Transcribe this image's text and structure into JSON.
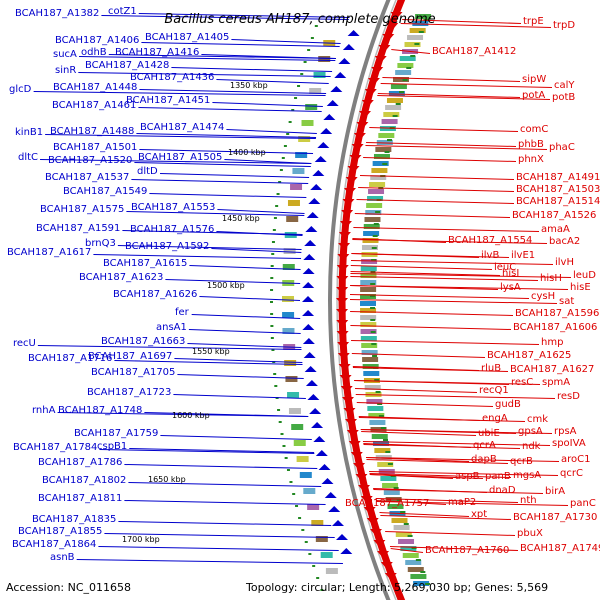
{
  "title": "Bacillus cereus AH187, complete genome",
  "accession_text": "Accession: NC_011658",
  "summary_text": "Topology: circular; Length: 5,269,030 bp; Genes: 5,569",
  "colors": {
    "left_strand": "#0000cc",
    "right_strand": "#dd0000",
    "backbone": "#808080",
    "tick_green": "#228822"
  },
  "kbp_ticks": [
    "1350 kbp",
    "1400 kbp",
    "1450 kbp",
    "1500 kbp",
    "1550 kbp",
    "1600 kbp",
    "1650 kbp",
    "1700 kbp"
  ],
  "left_labels": [
    "BCAH187_A1382",
    "cotZ1",
    "BCAH187_A1406",
    "BCAH187_A1405",
    "sucA",
    "odhB",
    "BCAH187_A1416",
    "sinR",
    "BCAH187_A1428",
    "BCAH187_A1436",
    "glcD",
    "BCAH187_A1448",
    "BCAH187_A1461",
    "BCAH187_A1451",
    "BCAH187_A1474",
    "kinB1",
    "BCAH187_A1488",
    "BCAH187_A1501",
    "dltC",
    "BCAH187_A1520",
    "BCAH187_A1505",
    "dltD",
    "BCAH187_A1537",
    "BCAH187_A1549",
    "BCAH187_A1575",
    "BCAH187_A1553",
    "BCAH187_A1591",
    "BCAH187_A1576",
    "brnQ3",
    "BCAH187_A1592",
    "BCAH187_A1617",
    "BCAH187_A1615",
    "BCAH187_A1623",
    "BCAH187_A1626",
    "fer",
    "ansA1",
    "BCAH187_A1663",
    "recU",
    "BCAH187_A1697",
    "BCAH187_A1716",
    "BCAH187_A1705",
    "BCAH187_A1723",
    "rnhA",
    "BCAH187_A1748",
    "BCAH187_A1759",
    "cspB1",
    "BCAH187_A1784",
    "BCAH187_A1786",
    "BCAH187_A1802",
    "BCAH187_A1811",
    "BCAH187_A1835",
    "BCAH187_A1855",
    "BCAH187_A1864",
    "asnB"
  ],
  "right_labels": [
    "trpE",
    "trpD",
    "BCAH187_A1412",
    "sipW",
    "calY",
    "potA",
    "potB",
    "comC",
    "phbB",
    "phaC",
    "phnX",
    "BCAH187_A1491",
    "BCAH187_A1503",
    "BCAH187_A1514",
    "BCAH187_A1526",
    "amaA",
    "BCAH187_A1554",
    "bacA2",
    "ilvB",
    "ilvE1",
    "leuC",
    "ilvH",
    "hisI",
    "hisH",
    "leuD",
    "lysA",
    "hisE",
    "cysH",
    "sat",
    "BCAH187_A1596",
    "BCAH187_A1606",
    "hmp",
    "BCAH187_A1625",
    "rluB",
    "BCAH187_A1627",
    "resC",
    "spmA",
    "recQ1",
    "resD",
    "gudB",
    "engA",
    "cmk",
    "ubiE",
    "gpsA",
    "rpsA",
    "qcrA",
    "ndk",
    "spoIVA",
    "aroC1",
    "dapB",
    "qcrB",
    "qcrC",
    "aspB",
    "panB",
    "mgsA",
    "birA",
    "dnaD",
    "nth",
    "maP2",
    "BCAH187_A1757",
    "panC",
    "xpt",
    "BCAH187_A1730",
    "pbuX",
    "BCAH187_A1760",
    "BCAH187_A1749"
  ]
}
